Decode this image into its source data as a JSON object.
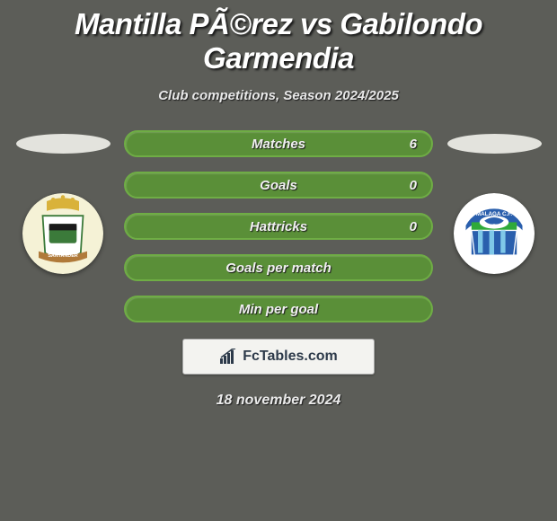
{
  "title": "Mantilla PÃ©rez vs Gabilondo Garmendia",
  "subtitle": "Club competitions, Season 2024/2025",
  "date_text": "18 november 2024",
  "brand_text": "FcTables.com",
  "background_color": "#5c5d58",
  "left": {
    "pill_color": "#e3e3dd",
    "crest_bg": "#f5f2d6",
    "crest_stripe1": "#3b7a3a",
    "crest_stripe2": "#1a1a1a",
    "crest_crown": "#d9b23a",
    "crest_banner": "#b07a3a",
    "crest_banner_text": "SANTANDER"
  },
  "right": {
    "pill_color": "#e3e3dd",
    "crest_bg": "#ffffff",
    "crest_blue": "#2a5fad",
    "crest_cyan": "#7fc8e8",
    "crest_green": "#2faa3a",
    "crest_banner": "#2a5fad",
    "crest_text": "MALAGA C.F."
  },
  "bars": [
    {
      "label": "Matches",
      "value": "6",
      "fill": "#5a8f38",
      "border": "#6fad45"
    },
    {
      "label": "Goals",
      "value": "0",
      "fill": "#5a8f38",
      "border": "#6fad45"
    },
    {
      "label": "Hattricks",
      "value": "0",
      "fill": "#5a8f38",
      "border": "#6fad45"
    },
    {
      "label": "Goals per match",
      "value": "",
      "fill": "#5a8f38",
      "border": "#6fad45"
    },
    {
      "label": "Min per goal",
      "value": "",
      "fill": "#5a8f38",
      "border": "#6fad45"
    }
  ],
  "bar_style": {
    "height": 30,
    "radius": 15,
    "gap": 16,
    "label_fontsize": 15,
    "label_color": "#f0f0f0"
  },
  "title_style": {
    "fontsize": 33,
    "color": "#ffffff"
  },
  "subtitle_style": {
    "fontsize": 15,
    "color": "#e8e8e8"
  }
}
